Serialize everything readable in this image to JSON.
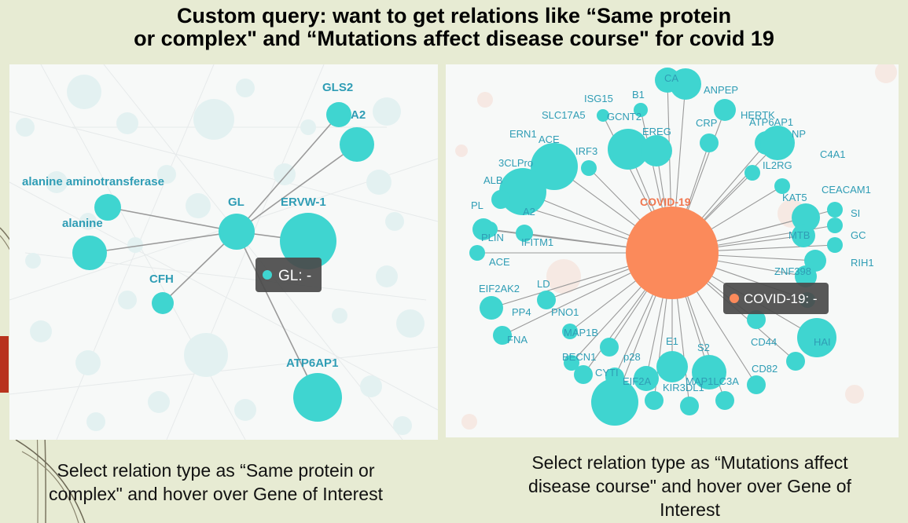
{
  "slide": {
    "title_line1": "Custom query: want to get relations like “Same protein",
    "title_line2": "or complex\" and “Mutations affect disease course\" for covid 19"
  },
  "left_panel": {
    "nodes": [
      {
        "label": "GLS2"
      },
      {
        "label": "A2"
      },
      {
        "label": "alanine aminotransferase"
      },
      {
        "label": "alanine"
      },
      {
        "label": "GL"
      },
      {
        "label": "ERVW-1"
      },
      {
        "label": "CFH"
      },
      {
        "label": "ATP6AP1"
      }
    ],
    "tooltip": {
      "text": "GL: -"
    },
    "caption_line1": "Select relation type as “Same protein or",
    "caption_line2": "complex\" and hover over Gene of Interest"
  },
  "right_panel": {
    "center_label": "COVID-19",
    "labels": [
      "CA",
      "B1",
      "ANPEP",
      "ISG15",
      "SLC17A5",
      "GCNT2",
      "CRP",
      "HERTK",
      "ATP6AP1",
      "ERN1",
      "ACE",
      "EREG",
      "NP",
      "IRF3",
      "3CLPro",
      "C4A1",
      "IL2RG",
      "ALB",
      "CEACAM1",
      "KAT5",
      "PL",
      "A2",
      "SI",
      "MTB",
      "GC",
      "PLIN",
      "IFITM1",
      "RIH1",
      "ACE",
      "ZNF398",
      "EIF2AK2",
      "LD",
      "PP4",
      "PNO1",
      "MAP1B",
      "CD44",
      "FNA",
      "E1",
      "S2",
      "HAI",
      "BECN1",
      "p28",
      "CYTI",
      "CD82",
      "EIF2A",
      "MAP1LC3A",
      "KIR3DL1"
    ],
    "tooltip": {
      "text": "COVID-19: -"
    },
    "caption_line1": "Select relation type as “Mutations affect",
    "caption_line2": "disease course\" and hover over Gene of",
    "caption_line3": "Interest"
  },
  "colors": {
    "node": "#3fd5d0",
    "center_node": "#fb8a5b",
    "label": "#2f9db5",
    "center_label": "#f07750",
    "tooltip_bg": "#4a4a4a"
  }
}
